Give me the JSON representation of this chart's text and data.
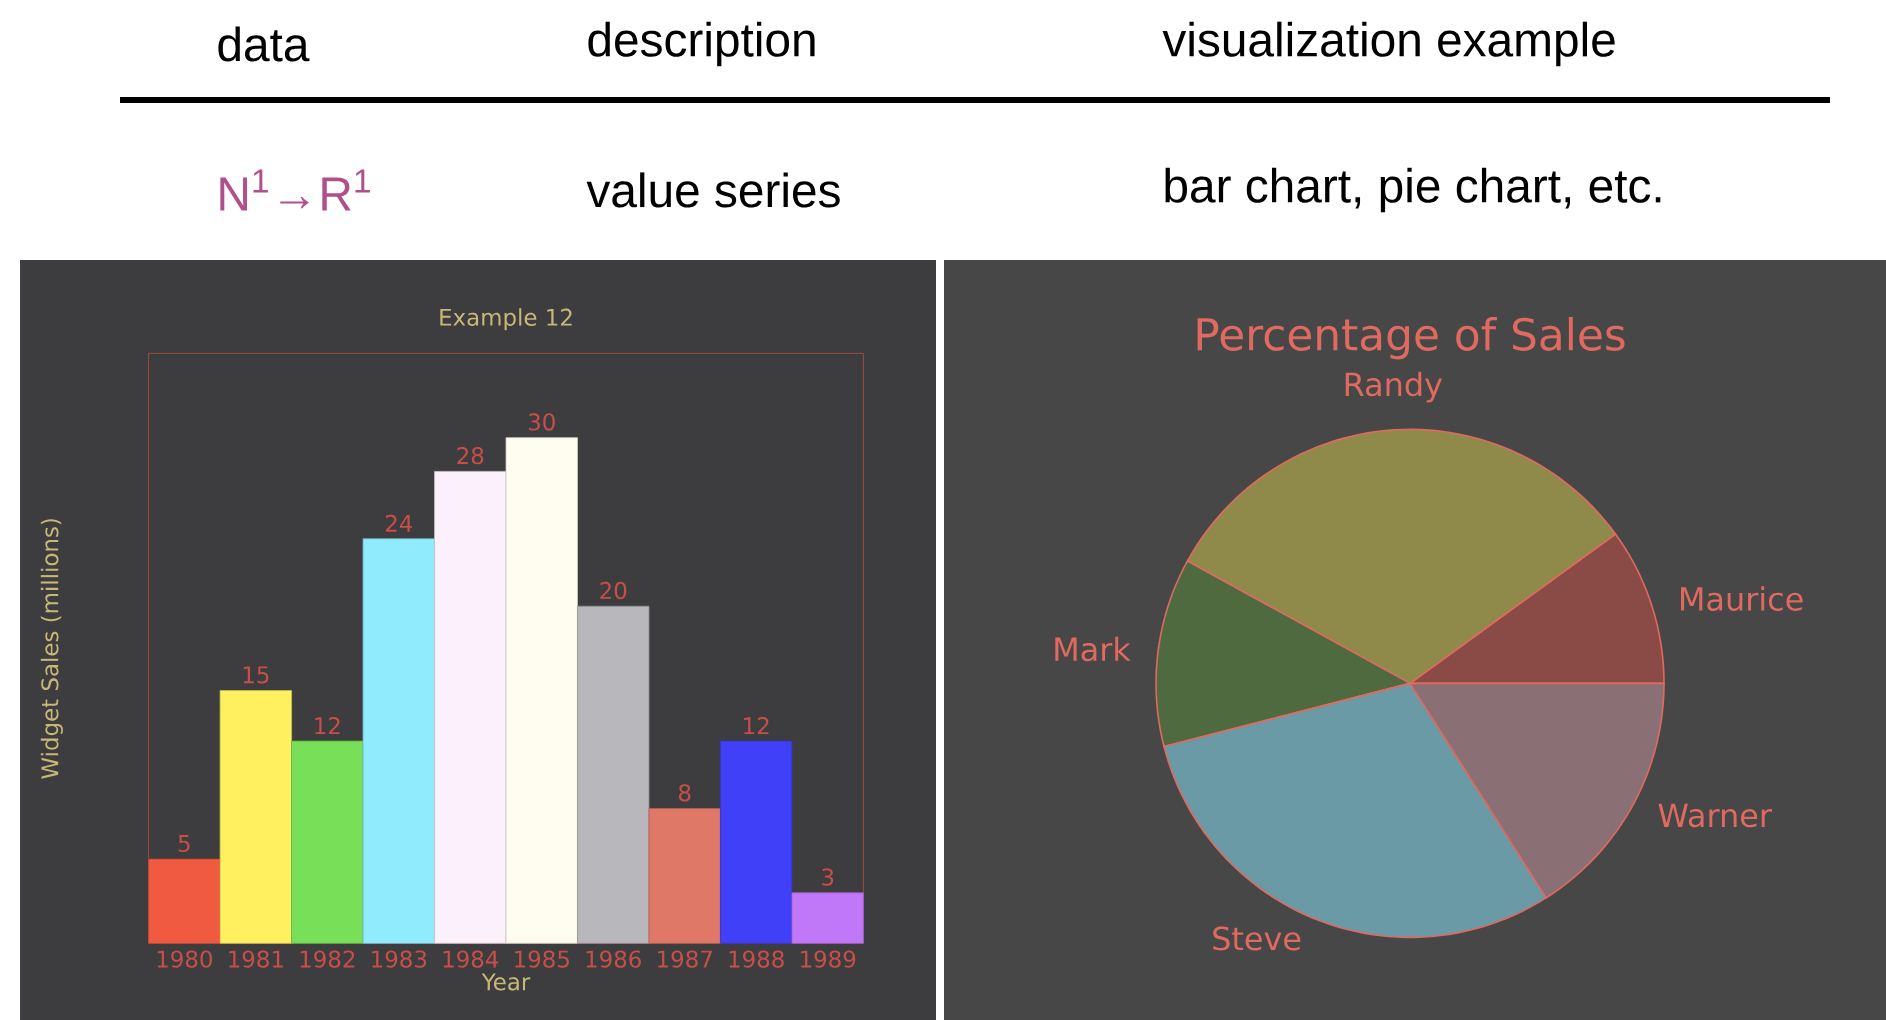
{
  "chart_data": [
    {
      "type": "other",
      "annotations": [
        "data",
        "description",
        "visualization example",
        "N$^{1}$→R$^{1}$",
        "value series",
        "bar chart, pie chart, etc."
      ]
    },
    {
      "type": "bar",
      "title": "Example 12",
      "xlabel": "Year",
      "ylabel": "Widget Sales (millions)",
      "categories": [
        "1980",
        "1981",
        "1982",
        "1983",
        "1984",
        "1985",
        "1986",
        "1987",
        "1988",
        "1989"
      ],
      "values": [
        5,
        15,
        12,
        24,
        28,
        30,
        20,
        8,
        12,
        3
      ],
      "colors": [
        "#f05a40",
        "#fff060",
        "#78e058",
        "#90ecfc",
        "#fcf0fc",
        "#fffcf0",
        "#b8b8bc",
        "#e07868",
        "#4040f8",
        "#c078f8"
      ],
      "ylim": [
        0,
        35
      ],
      "data_labels": true,
      "tick_labels": "x"
    },
    {
      "type": "pie",
      "title": "Percentage of Sales",
      "categories": [
        "Maurice",
        "Randy",
        "Mark",
        "Steve",
        "Warner"
      ],
      "values": [
        10,
        32,
        12,
        30,
        16
      ],
      "colors": [
        "#8a4a45",
        "#8f8a4a",
        "#4f6a3e",
        "#6a9aa5",
        "#8a7075"
      ]
    }
  ]
}
